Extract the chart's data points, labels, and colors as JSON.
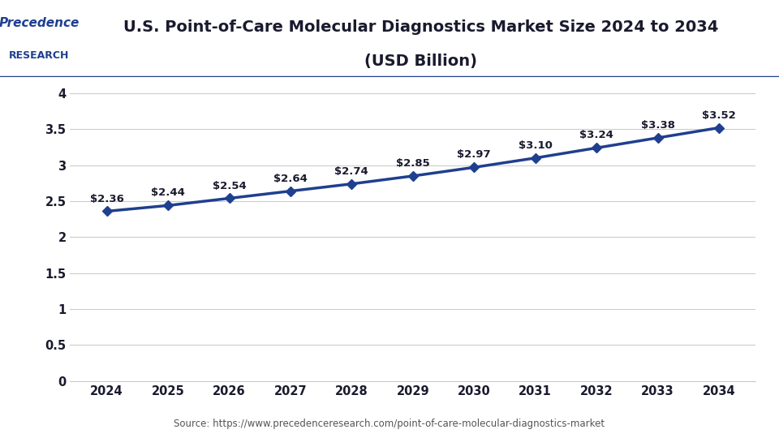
{
  "title_line1": "U.S. Point-of-Care Molecular Diagnostics Market Size 2024 to 2034",
  "title_line2": "(USD Billion)",
  "years": [
    2024,
    2025,
    2026,
    2027,
    2028,
    2029,
    2030,
    2031,
    2032,
    2033,
    2034
  ],
  "values": [
    2.36,
    2.44,
    2.54,
    2.64,
    2.74,
    2.85,
    2.97,
    3.1,
    3.24,
    3.38,
    3.52
  ],
  "labels": [
    "$2.36",
    "$2.44",
    "$2.54",
    "$2.64",
    "$2.74",
    "$2.85",
    "$2.97",
    "$3.10",
    "$3.24",
    "$3.38",
    "$3.52"
  ],
  "line_color": "#1F3F8F",
  "marker_color": "#1F3F8F",
  "background_color": "#FFFFFF",
  "plot_bg_color": "#FFFFFF",
  "grid_color": "#CCCCCC",
  "title_color": "#1a1a2e",
  "label_color": "#1a1a2e",
  "yticks": [
    0,
    0.5,
    1,
    1.5,
    2,
    2.5,
    3,
    3.5,
    4
  ],
  "ylim": [
    0,
    4.2
  ],
  "source_text": "Source: https://www.precedenceresearch.com/point-of-care-molecular-diagnostics-market",
  "header_bg_color": "#FFFFFF",
  "header_border_color": "#1F3F8F"
}
